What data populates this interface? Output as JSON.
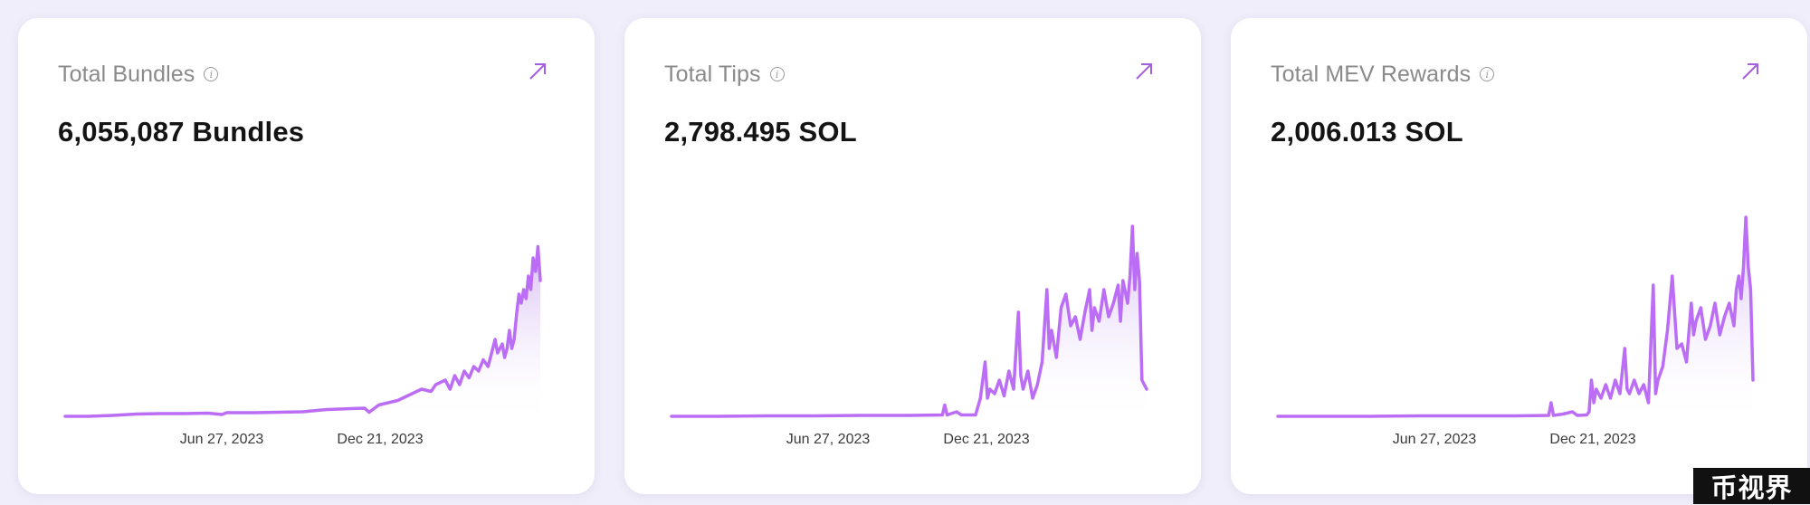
{
  "cards": [
    {
      "title": "Total Bundles",
      "value": "6,055,087 Bundles",
      "info_icon": "info-icon",
      "link_icon": "arrow-up-right-icon"
    },
    {
      "title": "Total Tips",
      "value": "2,798.495 SOL",
      "info_icon": "info-icon",
      "link_icon": "arrow-up-right-icon"
    },
    {
      "title": "Total MEV Rewards",
      "value": "2,006.013 SOL",
      "info_icon": "info-icon",
      "link_icon": "arrow-up-right-icon"
    }
  ],
  "colors": {
    "line": "#bb6ef5",
    "area_top": "#c9a6ee",
    "background": "#f0eefa",
    "card": "#ffffff",
    "arrow": "#a45fe0"
  },
  "chart_data": [
    {
      "type": "area",
      "title": "Total Bundles",
      "x_tick_labels": [
        "Jun 27, 2023",
        "Dec 21, 2023"
      ],
      "grid": false,
      "legend": "none",
      "ylim": [
        0,
        1
      ],
      "series": [
        {
          "points": [
            [
              0,
              0.0
            ],
            [
              0.05,
              0.0
            ],
            [
              0.1,
              0.004
            ],
            [
              0.15,
              0.01
            ],
            [
              0.2,
              0.012
            ],
            [
              0.25,
              0.012
            ],
            [
              0.3,
              0.014
            ],
            [
              0.33,
              0.008
            ],
            [
              0.34,
              0.016
            ],
            [
              0.4,
              0.016
            ],
            [
              0.45,
              0.018
            ],
            [
              0.5,
              0.02
            ],
            [
              0.55,
              0.03
            ],
            [
              0.6,
              0.034
            ],
            [
              0.63,
              0.036
            ],
            [
              0.64,
              0.018
            ],
            [
              0.66,
              0.05
            ],
            [
              0.7,
              0.07
            ],
            [
              0.73,
              0.1
            ],
            [
              0.75,
              0.12
            ],
            [
              0.77,
              0.11
            ],
            [
              0.78,
              0.14
            ],
            [
              0.8,
              0.16
            ],
            [
              0.81,
              0.12
            ],
            [
              0.82,
              0.18
            ],
            [
              0.83,
              0.14
            ],
            [
              0.84,
              0.2
            ],
            [
              0.85,
              0.17
            ],
            [
              0.86,
              0.22
            ],
            [
              0.87,
              0.2
            ],
            [
              0.88,
              0.25
            ],
            [
              0.89,
              0.22
            ],
            [
              0.9,
              0.3
            ],
            [
              0.905,
              0.34
            ],
            [
              0.91,
              0.28
            ],
            [
              0.92,
              0.32
            ],
            [
              0.925,
              0.26
            ],
            [
              0.93,
              0.3
            ],
            [
              0.935,
              0.38
            ],
            [
              0.94,
              0.3
            ],
            [
              0.945,
              0.34
            ],
            [
              0.95,
              0.45
            ],
            [
              0.955,
              0.54
            ],
            [
              0.96,
              0.5
            ],
            [
              0.965,
              0.56
            ],
            [
              0.97,
              0.52
            ],
            [
              0.975,
              0.62
            ],
            [
              0.98,
              0.56
            ],
            [
              0.985,
              0.7
            ],
            [
              0.99,
              0.64
            ],
            [
              0.995,
              0.75
            ],
            [
              1.0,
              0.6
            ]
          ]
        }
      ]
    },
    {
      "type": "area",
      "title": "Total Tips",
      "x_tick_labels": [
        "Jun 27, 2023",
        "Dec 21, 2023"
      ],
      "grid": false,
      "legend": "none",
      "ylim": [
        0,
        1
      ],
      "series": [
        {
          "points": [
            [
              0,
              0.0
            ],
            [
              0.1,
              0.0
            ],
            [
              0.2,
              0.002
            ],
            [
              0.3,
              0.002
            ],
            [
              0.4,
              0.004
            ],
            [
              0.5,
              0.004
            ],
            [
              0.57,
              0.006
            ],
            [
              0.575,
              0.05
            ],
            [
              0.58,
              0.006
            ],
            [
              0.6,
              0.02
            ],
            [
              0.61,
              0.006
            ],
            [
              0.64,
              0.006
            ],
            [
              0.65,
              0.08
            ],
            [
              0.66,
              0.24
            ],
            [
              0.665,
              0.08
            ],
            [
              0.67,
              0.12
            ],
            [
              0.68,
              0.1
            ],
            [
              0.69,
              0.16
            ],
            [
              0.7,
              0.09
            ],
            [
              0.71,
              0.2
            ],
            [
              0.72,
              0.12
            ],
            [
              0.73,
              0.46
            ],
            [
              0.735,
              0.18
            ],
            [
              0.74,
              0.12
            ],
            [
              0.75,
              0.2
            ],
            [
              0.76,
              0.08
            ],
            [
              0.77,
              0.14
            ],
            [
              0.78,
              0.24
            ],
            [
              0.79,
              0.56
            ],
            [
              0.795,
              0.3
            ],
            [
              0.8,
              0.38
            ],
            [
              0.81,
              0.26
            ],
            [
              0.82,
              0.48
            ],
            [
              0.83,
              0.54
            ],
            [
              0.84,
              0.4
            ],
            [
              0.85,
              0.44
            ],
            [
              0.86,
              0.34
            ],
            [
              0.87,
              0.46
            ],
            [
              0.88,
              0.56
            ],
            [
              0.885,
              0.38
            ],
            [
              0.89,
              0.48
            ],
            [
              0.9,
              0.42
            ],
            [
              0.91,
              0.56
            ],
            [
              0.92,
              0.44
            ],
            [
              0.93,
              0.5
            ],
            [
              0.94,
              0.58
            ],
            [
              0.945,
              0.42
            ],
            [
              0.95,
              0.6
            ],
            [
              0.96,
              0.5
            ],
            [
              0.965,
              0.62
            ],
            [
              0.97,
              0.84
            ],
            [
              0.975,
              0.56
            ],
            [
              0.98,
              0.72
            ],
            [
              0.985,
              0.6
            ],
            [
              0.99,
              0.16
            ],
            [
              1.0,
              0.12
            ]
          ]
        }
      ]
    },
    {
      "type": "area",
      "title": "Total MEV Rewards",
      "x_tick_labels": [
        "Jun 27, 2023",
        "Dec 21, 2023"
      ],
      "grid": false,
      "legend": "none",
      "ylim": [
        0,
        1
      ],
      "series": [
        {
          "points": [
            [
              0,
              0.0
            ],
            [
              0.1,
              0.0
            ],
            [
              0.2,
              0.0
            ],
            [
              0.3,
              0.002
            ],
            [
              0.4,
              0.002
            ],
            [
              0.5,
              0.002
            ],
            [
              0.57,
              0.004
            ],
            [
              0.575,
              0.06
            ],
            [
              0.58,
              0.004
            ],
            [
              0.6,
              0.01
            ],
            [
              0.62,
              0.02
            ],
            [
              0.63,
              0.004
            ],
            [
              0.65,
              0.006
            ],
            [
              0.655,
              0.02
            ],
            [
              0.66,
              0.16
            ],
            [
              0.665,
              0.06
            ],
            [
              0.67,
              0.12
            ],
            [
              0.68,
              0.08
            ],
            [
              0.69,
              0.14
            ],
            [
              0.7,
              0.08
            ],
            [
              0.71,
              0.16
            ],
            [
              0.72,
              0.1
            ],
            [
              0.73,
              0.3
            ],
            [
              0.735,
              0.12
            ],
            [
              0.74,
              0.1
            ],
            [
              0.75,
              0.16
            ],
            [
              0.76,
              0.1
            ],
            [
              0.77,
              0.14
            ],
            [
              0.78,
              0.06
            ],
            [
              0.79,
              0.58
            ],
            [
              0.795,
              0.1
            ],
            [
              0.8,
              0.16
            ],
            [
              0.81,
              0.22
            ],
            [
              0.82,
              0.38
            ],
            [
              0.83,
              0.62
            ],
            [
              0.84,
              0.3
            ],
            [
              0.85,
              0.32
            ],
            [
              0.86,
              0.24
            ],
            [
              0.87,
              0.5
            ],
            [
              0.875,
              0.36
            ],
            [
              0.88,
              0.42
            ],
            [
              0.89,
              0.48
            ],
            [
              0.9,
              0.34
            ],
            [
              0.91,
              0.4
            ],
            [
              0.92,
              0.5
            ],
            [
              0.93,
              0.36
            ],
            [
              0.94,
              0.44
            ],
            [
              0.95,
              0.5
            ],
            [
              0.96,
              0.4
            ],
            [
              0.965,
              0.56
            ],
            [
              0.97,
              0.62
            ],
            [
              0.975,
              0.52
            ],
            [
              0.98,
              0.66
            ],
            [
              0.985,
              0.88
            ],
            [
              0.99,
              0.66
            ],
            [
              0.995,
              0.56
            ],
            [
              1.0,
              0.16
            ]
          ]
        }
      ]
    }
  ]
}
